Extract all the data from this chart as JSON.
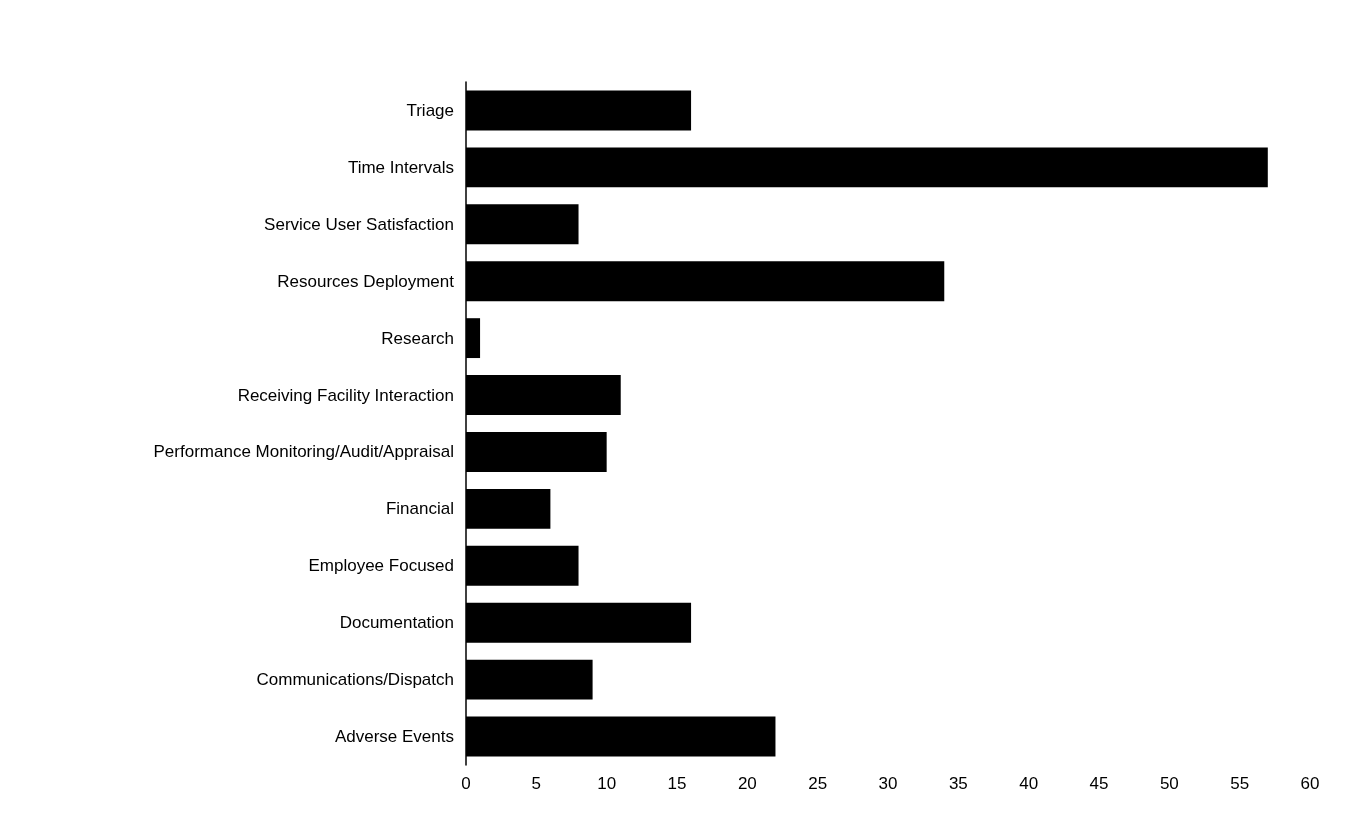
{
  "chart_data": {
    "type": "bar",
    "orientation": "horizontal",
    "categories": [
      "Triage",
      "Time Intervals",
      "Service User Satisfaction",
      "Resources Deployment",
      "Research",
      "Receiving Facility Interaction",
      "Performance Monitoring/Audit/Appraisal",
      "Financial",
      "Employee Focused",
      "Documentation",
      "Communications/Dispatch",
      "Adverse Events"
    ],
    "values": [
      16,
      57,
      8,
      34,
      1,
      11,
      10,
      6,
      8,
      16,
      9,
      22
    ],
    "color": "#000000",
    "xlim": [
      0,
      60
    ],
    "xticks": [
      0,
      5,
      10,
      15,
      20,
      25,
      30,
      35,
      40,
      45,
      50,
      55,
      60
    ],
    "grid": false
  }
}
